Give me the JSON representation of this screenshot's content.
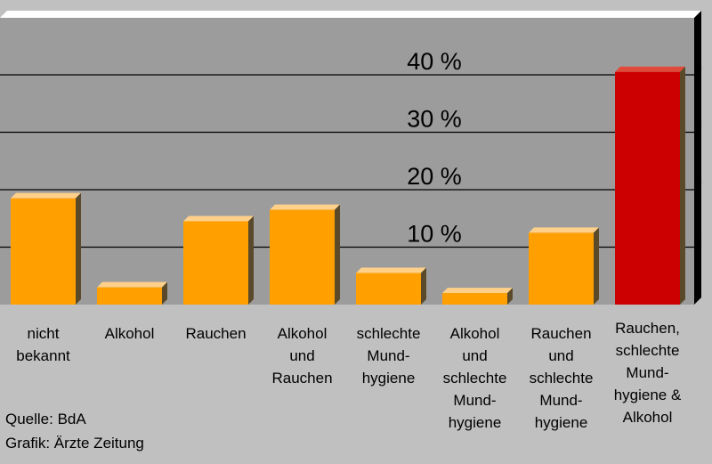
{
  "chart_data": {
    "type": "bar",
    "categories": [
      "nicht\nbekannt",
      "Alkohol",
      "Rauchen",
      "Alkohol\nund\nRauchen",
      "schlechte\nMund-\nhygiene",
      "Alkohol\nund\nschlechte\nMund-\nhygiene",
      "Rauchen\nund\nschlechte\nMund-\nhygiene",
      "Rauchen,\nschlechte\nMund-\nhygiene  &\nAlkohol"
    ],
    "values": [
      18.5,
      3.0,
      14.5,
      16.5,
      5.5,
      2.0,
      12.5,
      40.5
    ],
    "bar_colors": [
      "#ffa000",
      "#ffa000",
      "#ffa000",
      "#ffa000",
      "#ffa000",
      "#ffa000",
      "#ffa000",
      "#cc0000"
    ],
    "yticks": [
      10,
      20,
      30,
      40
    ],
    "ytick_labels": [
      "10 %",
      "20 %",
      "30 %",
      "40 %"
    ],
    "ylim": [
      0,
      50
    ],
    "grid": true,
    "plot_background": "#9c9c9c"
  },
  "source": {
    "line1": "Quelle: BdA",
    "line2": "Grafik: Ärzte Zeitung"
  }
}
